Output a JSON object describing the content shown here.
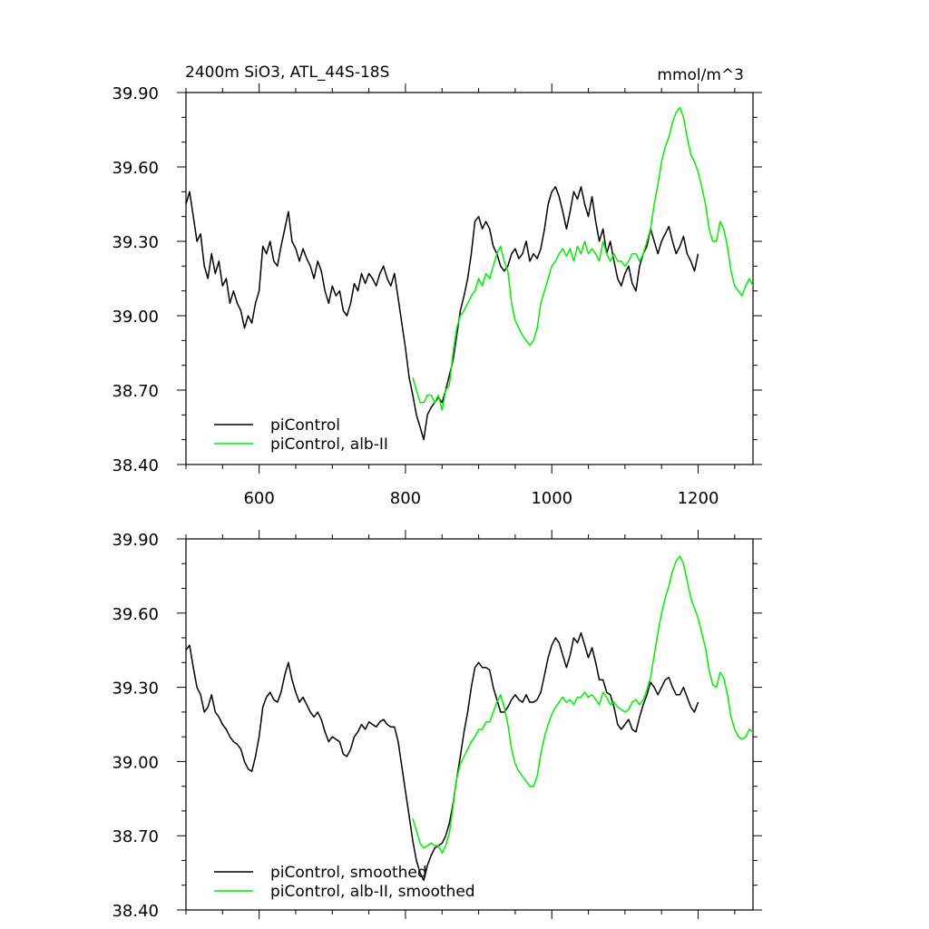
{
  "title": "2400m SiO3, ATL_44S-18S",
  "units": "mmol/m^3",
  "colors": {
    "piControl": "#000000",
    "alb": "#00ee00"
  },
  "chart_data": [
    {
      "type": "line",
      "title": "2400m SiO3, ATL_44S-18S",
      "units": "mmol/m^3",
      "xlim": [
        500,
        1275
      ],
      "ylim": [
        38.4,
        39.9
      ],
      "x_ticks": [
        600,
        800,
        1000,
        1200
      ],
      "x_tick_labels": [
        "600",
        "800",
        "1000",
        "1200"
      ],
      "y_ticks": [
        38.4,
        38.7,
        39.0,
        39.3,
        39.6,
        39.9
      ],
      "y_tick_labels": [
        "38.40",
        "38.70",
        "39.00",
        "39.30",
        "39.60",
        "39.90"
      ],
      "legend": "bottom-left",
      "series": [
        {
          "name": "piControl",
          "color": "#000000",
          "x": [
            500,
            505,
            510,
            515,
            520,
            525,
            530,
            535,
            540,
            545,
            550,
            555,
            560,
            565,
            570,
            575,
            580,
            585,
            590,
            595,
            600,
            605,
            610,
            615,
            620,
            625,
            630,
            635,
            640,
            645,
            650,
            655,
            660,
            665,
            670,
            675,
            680,
            685,
            690,
            695,
            700,
            705,
            710,
            715,
            720,
            725,
            730,
            735,
            740,
            745,
            750,
            755,
            760,
            765,
            770,
            775,
            780,
            785,
            790,
            795,
            800,
            805,
            810,
            815,
            820,
            825,
            830,
            835,
            840,
            845,
            850,
            855,
            860,
            865,
            870,
            875,
            880,
            885,
            890,
            895,
            900,
            905,
            910,
            915,
            920,
            925,
            930,
            935,
            940,
            945,
            950,
            955,
            960,
            965,
            970,
            975,
            980,
            985,
            990,
            995,
            1000,
            1005,
            1010,
            1015,
            1020,
            1025,
            1030,
            1035,
            1040,
            1045,
            1050,
            1055,
            1060,
            1065,
            1070,
            1075,
            1080,
            1085,
            1090,
            1095,
            1100,
            1105,
            1110,
            1115,
            1120,
            1125,
            1130,
            1135,
            1140,
            1145,
            1150,
            1155,
            1160,
            1165,
            1170,
            1175,
            1180,
            1185,
            1190,
            1195,
            1200
          ],
          "y": [
            39.45,
            39.5,
            39.4,
            39.3,
            39.33,
            39.2,
            39.15,
            39.25,
            39.17,
            39.22,
            39.12,
            39.15,
            39.05,
            39.1,
            39.05,
            39.02,
            38.95,
            39.0,
            38.97,
            39.05,
            39.1,
            39.28,
            39.25,
            39.3,
            39.22,
            39.2,
            39.28,
            39.35,
            39.42,
            39.3,
            39.27,
            39.22,
            39.27,
            39.23,
            39.2,
            39.15,
            39.22,
            39.18,
            39.1,
            39.05,
            39.12,
            39.08,
            39.1,
            39.02,
            39.0,
            39.05,
            39.13,
            39.1,
            39.17,
            39.13,
            39.17,
            39.15,
            39.12,
            39.17,
            39.2,
            39.15,
            39.12,
            39.17,
            39.07,
            38.97,
            38.87,
            38.75,
            38.68,
            38.6,
            38.55,
            38.5,
            38.6,
            38.63,
            38.65,
            38.67,
            38.65,
            38.7,
            38.76,
            38.82,
            38.92,
            39.02,
            39.08,
            39.15,
            39.25,
            39.38,
            39.4,
            39.35,
            39.38,
            39.35,
            39.28,
            39.25,
            39.2,
            39.18,
            39.2,
            39.25,
            39.27,
            39.23,
            39.25,
            39.3,
            39.22,
            39.25,
            39.23,
            39.27,
            39.35,
            39.45,
            39.5,
            39.52,
            39.48,
            39.42,
            39.35,
            39.42,
            39.5,
            39.47,
            39.52,
            39.45,
            39.4,
            39.48,
            39.38,
            39.3,
            39.35,
            39.25,
            39.3,
            39.22,
            39.15,
            39.12,
            39.17,
            39.2,
            39.13,
            39.1,
            39.2,
            39.25,
            39.28,
            39.35,
            39.3,
            39.25,
            39.3,
            39.33,
            39.36,
            39.3,
            39.25,
            39.28,
            39.32,
            39.25,
            39.22,
            39.18,
            39.25
          ]
        },
        {
          "name": "piControl, alb-II",
          "color": "#00ee00",
          "x": [
            810,
            815,
            820,
            825,
            830,
            835,
            840,
            845,
            850,
            855,
            860,
            865,
            870,
            875,
            880,
            885,
            890,
            895,
            900,
            905,
            910,
            915,
            920,
            925,
            930,
            935,
            940,
            945,
            950,
            955,
            960,
            965,
            970,
            975,
            980,
            985,
            990,
            995,
            1000,
            1005,
            1010,
            1015,
            1020,
            1025,
            1030,
            1035,
            1040,
            1045,
            1050,
            1055,
            1060,
            1065,
            1070,
            1075,
            1080,
            1085,
            1090,
            1095,
            1100,
            1105,
            1110,
            1115,
            1120,
            1125,
            1130,
            1135,
            1140,
            1145,
            1150,
            1155,
            1160,
            1165,
            1170,
            1175,
            1180,
            1185,
            1190,
            1195,
            1200,
            1205,
            1210,
            1215,
            1220,
            1225,
            1230,
            1235,
            1240,
            1245,
            1250,
            1255,
            1260,
            1265,
            1270,
            1275
          ],
          "y": [
            38.75,
            38.7,
            38.65,
            38.65,
            38.68,
            38.68,
            38.65,
            38.68,
            38.62,
            38.7,
            38.72,
            38.85,
            38.95,
            39.0,
            39.02,
            39.05,
            39.08,
            39.1,
            39.15,
            39.12,
            39.17,
            39.15,
            39.2,
            39.25,
            39.28,
            39.22,
            39.18,
            39.05,
            38.98,
            38.95,
            38.92,
            38.9,
            38.88,
            38.9,
            38.95,
            39.05,
            39.1,
            39.15,
            39.2,
            39.22,
            39.25,
            39.27,
            39.24,
            39.27,
            39.22,
            39.28,
            39.25,
            39.3,
            39.25,
            39.27,
            39.25,
            39.22,
            39.3,
            39.25,
            39.22,
            39.25,
            39.22,
            39.22,
            39.2,
            39.22,
            39.25,
            39.25,
            39.22,
            39.25,
            39.3,
            39.35,
            39.45,
            39.53,
            39.62,
            39.68,
            39.72,
            39.78,
            39.82,
            39.84,
            39.8,
            39.72,
            39.65,
            39.62,
            39.58,
            39.52,
            39.45,
            39.35,
            39.3,
            39.3,
            39.38,
            39.35,
            39.28,
            39.18,
            39.12,
            39.1,
            39.08,
            39.12,
            39.15,
            39.12
          ]
        }
      ]
    },
    {
      "type": "line",
      "xlim": [
        500,
        1275
      ],
      "ylim": [
        38.4,
        39.9
      ],
      "x_ticks": [
        600,
        800,
        1000,
        1200
      ],
      "y_ticks": [
        38.4,
        38.7,
        39.0,
        39.3,
        39.6,
        39.9
      ],
      "y_tick_labels": [
        "38.40",
        "38.70",
        "39.00",
        "39.30",
        "39.60",
        "39.90"
      ],
      "legend": "bottom-left",
      "series": [
        {
          "name": "piControl, smoothed",
          "color": "#000000",
          "x": [
            500,
            505,
            510,
            515,
            520,
            525,
            530,
            535,
            540,
            545,
            550,
            555,
            560,
            565,
            570,
            575,
            580,
            585,
            590,
            595,
            600,
            605,
            610,
            615,
            620,
            625,
            630,
            635,
            640,
            645,
            650,
            655,
            660,
            665,
            670,
            675,
            680,
            685,
            690,
            695,
            700,
            705,
            710,
            715,
            720,
            725,
            730,
            735,
            740,
            745,
            750,
            755,
            760,
            765,
            770,
            775,
            780,
            785,
            790,
            795,
            800,
            805,
            810,
            815,
            820,
            825,
            830,
            835,
            840,
            845,
            850,
            855,
            860,
            865,
            870,
            875,
            880,
            885,
            890,
            895,
            900,
            905,
            910,
            915,
            920,
            925,
            930,
            935,
            940,
            945,
            950,
            955,
            960,
            965,
            970,
            975,
            980,
            985,
            990,
            995,
            1000,
            1005,
            1010,
            1015,
            1020,
            1025,
            1030,
            1035,
            1040,
            1045,
            1050,
            1055,
            1060,
            1065,
            1070,
            1075,
            1080,
            1085,
            1090,
            1095,
            1100,
            1105,
            1110,
            1115,
            1120,
            1125,
            1130,
            1135,
            1140,
            1145,
            1150,
            1155,
            1160,
            1165,
            1170,
            1175,
            1180,
            1185,
            1190,
            1195,
            1200
          ],
          "y": [
            39.45,
            39.47,
            39.38,
            39.3,
            39.27,
            39.2,
            39.22,
            39.27,
            39.2,
            39.18,
            39.15,
            39.13,
            39.1,
            39.08,
            39.07,
            39.05,
            39.0,
            38.97,
            38.96,
            39.02,
            39.1,
            39.22,
            39.26,
            39.28,
            39.25,
            39.24,
            39.28,
            39.35,
            39.4,
            39.33,
            39.28,
            39.24,
            39.26,
            39.23,
            39.2,
            39.18,
            39.2,
            39.17,
            39.12,
            39.08,
            39.1,
            39.09,
            39.08,
            39.03,
            39.02,
            39.05,
            39.1,
            39.12,
            39.15,
            39.13,
            39.16,
            39.15,
            39.14,
            39.16,
            39.17,
            39.15,
            39.14,
            39.14,
            39.08,
            38.98,
            38.88,
            38.78,
            38.68,
            38.6,
            38.55,
            38.52,
            38.58,
            38.62,
            38.65,
            38.66,
            38.67,
            38.7,
            38.75,
            38.83,
            38.93,
            39.02,
            39.12,
            39.2,
            39.3,
            39.38,
            39.4,
            39.38,
            39.38,
            39.37,
            39.3,
            39.25,
            39.2,
            39.2,
            39.22,
            39.25,
            39.27,
            39.25,
            39.24,
            39.27,
            39.24,
            39.24,
            39.25,
            39.28,
            39.35,
            39.42,
            39.47,
            39.5,
            39.48,
            39.43,
            39.38,
            39.43,
            39.5,
            39.48,
            39.52,
            39.47,
            39.42,
            39.46,
            39.4,
            39.33,
            39.33,
            39.28,
            39.27,
            39.22,
            39.15,
            39.13,
            39.15,
            39.17,
            39.13,
            39.12,
            39.18,
            39.23,
            39.27,
            39.32,
            39.3,
            39.27,
            39.3,
            39.33,
            39.34,
            39.3,
            39.27,
            39.27,
            39.3,
            39.26,
            39.22,
            39.2,
            39.24
          ]
        },
        {
          "name": "piControl, alb-II, smoothed",
          "color": "#00ee00",
          "x": [
            810,
            815,
            820,
            825,
            830,
            835,
            840,
            845,
            850,
            855,
            860,
            865,
            870,
            875,
            880,
            885,
            890,
            895,
            900,
            905,
            910,
            915,
            920,
            925,
            930,
            935,
            940,
            945,
            950,
            955,
            960,
            965,
            970,
            975,
            980,
            985,
            990,
            995,
            1000,
            1005,
            1010,
            1015,
            1020,
            1025,
            1030,
            1035,
            1040,
            1045,
            1050,
            1055,
            1060,
            1065,
            1070,
            1075,
            1080,
            1085,
            1090,
            1095,
            1100,
            1105,
            1110,
            1115,
            1120,
            1125,
            1130,
            1135,
            1140,
            1145,
            1150,
            1155,
            1160,
            1165,
            1170,
            1175,
            1180,
            1185,
            1190,
            1195,
            1200,
            1205,
            1210,
            1215,
            1220,
            1225,
            1230,
            1235,
            1240,
            1245,
            1250,
            1255,
            1260,
            1265,
            1270,
            1275
          ],
          "y": [
            38.77,
            38.72,
            38.67,
            38.65,
            38.66,
            38.67,
            38.66,
            38.66,
            38.63,
            38.66,
            38.71,
            38.82,
            38.93,
            38.99,
            39.02,
            39.05,
            39.08,
            39.1,
            39.13,
            39.13,
            39.16,
            39.16,
            39.2,
            39.24,
            39.27,
            39.22,
            39.15,
            39.05,
            38.99,
            38.96,
            38.94,
            38.92,
            38.9,
            38.9,
            38.94,
            39.03,
            39.1,
            39.15,
            39.19,
            39.22,
            39.24,
            39.26,
            39.24,
            39.25,
            39.23,
            39.26,
            39.26,
            39.28,
            39.26,
            39.27,
            39.25,
            39.23,
            39.28,
            39.26,
            39.23,
            39.24,
            39.22,
            39.21,
            39.2,
            39.21,
            39.24,
            39.25,
            39.23,
            39.25,
            39.29,
            39.34,
            39.43,
            39.52,
            39.6,
            39.66,
            39.71,
            39.77,
            39.81,
            39.83,
            39.8,
            39.73,
            39.66,
            39.62,
            39.58,
            39.52,
            39.46,
            39.37,
            39.31,
            39.3,
            39.36,
            39.34,
            39.27,
            39.18,
            39.13,
            39.1,
            39.09,
            39.1,
            39.13,
            39.12
          ]
        }
      ]
    }
  ]
}
